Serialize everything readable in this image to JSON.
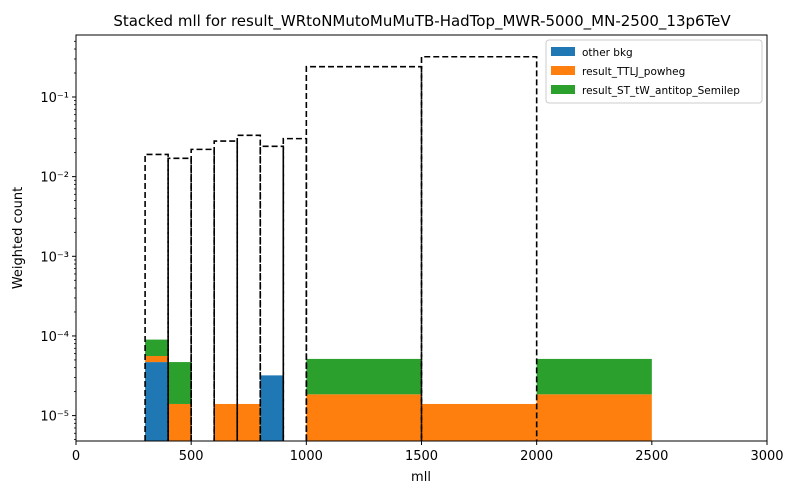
{
  "chart_data": {
    "type": "bar",
    "title": "Stacked mll for result_WRtoNMutoMuMuTB-HadTop_MWR-5000_MN-2500_13p6TeV",
    "xlabel": "mll",
    "ylabel": "Weighted count",
    "xlim": [
      0,
      3000
    ],
    "ylim": [
      4.8e-06,
      0.6
    ],
    "yscale": "log",
    "x_ticks": [
      "0",
      "500",
      "1000",
      "1500",
      "2000",
      "2500",
      "3000"
    ],
    "y_ticks": [
      "10⁻⁵",
      "10⁻⁴",
      "10⁻³",
      "10⁻²",
      "10⁻¹"
    ],
    "legend_position": "top-right",
    "bins": [
      [
        300,
        400
      ],
      [
        400,
        500
      ],
      [
        500,
        600
      ],
      [
        600,
        700
      ],
      [
        700,
        800
      ],
      [
        800,
        900
      ],
      [
        900,
        1000
      ],
      [
        1000,
        1500
      ],
      [
        1500,
        2000
      ],
      [
        2000,
        2500
      ]
    ],
    "series": [
      {
        "name": "other bkg",
        "color": "#1f77b4",
        "values": [
          4.7e-05,
          0,
          0,
          0,
          0,
          3.2e-05,
          0,
          0,
          0,
          0
        ]
      },
      {
        "name": "result_TTLJ_powheg",
        "color": "#ff7f0e",
        "values": [
          9e-06,
          1.4e-05,
          0,
          1.4e-05,
          1.4e-05,
          0,
          0,
          1.85e-05,
          1.4e-05,
          1.85e-05
        ]
      },
      {
        "name": "result_ST_tW_antitop_Semilep",
        "color": "#2ca02c",
        "values": [
          3.4e-05,
          3.3e-05,
          0,
          0,
          0,
          0,
          0,
          3.3e-05,
          0,
          3.3e-05
        ]
      }
    ],
    "signal_outline": {
      "style": "dashed",
      "color": "#000000",
      "values": [
        0.019,
        0.017,
        0.022,
        0.028,
        0.033,
        0.024,
        0.03,
        0.24,
        0.32,
        0
      ]
    }
  }
}
